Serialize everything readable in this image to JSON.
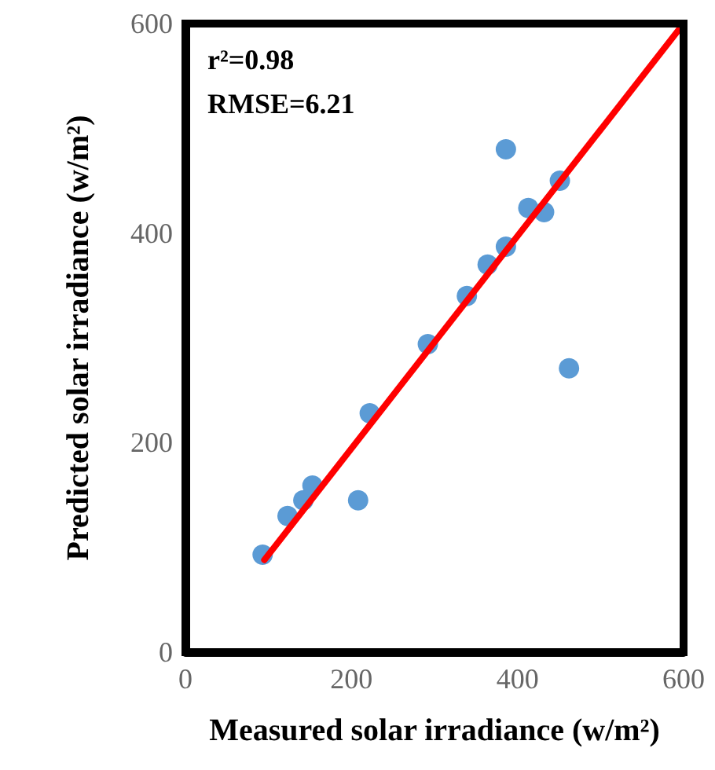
{
  "chart_data": {
    "type": "scatter",
    "xlabel": "Measured solar irradiance (w/m²)",
    "ylabel": "Predicted solar irradiance (w/m²)",
    "annotations": [
      "r²=0.98",
      "RMSE=6.21"
    ],
    "xlim": [
      0,
      600
    ],
    "xticks": [
      0,
      200,
      400,
      600
    ],
    "ylim": [
      0,
      600
    ],
    "yticks": [
      0,
      200,
      400,
      600
    ],
    "grid": false,
    "marker": "circle",
    "series": [
      {
        "color": "#5b9bd5",
        "x": [
          93,
          123,
          142,
          153,
          208,
          222,
          292,
          339,
          364,
          386,
          386,
          413,
          432,
          451,
          462
        ],
        "values": [
          93,
          130,
          145,
          159,
          145,
          228,
          294,
          340,
          370,
          387,
          480,
          424,
          420,
          450,
          271
        ]
      },
      {
        "type": "line",
        "color": "#ff0000",
        "x": [
          95,
          600
        ],
        "values": [
          88,
          600
        ],
        "marker": "none",
        "line_style": "solid"
      }
    ]
  }
}
